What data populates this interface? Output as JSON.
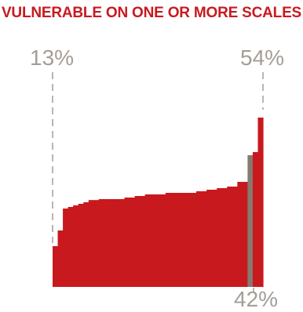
{
  "chart_data": {
    "type": "bar",
    "title": "VULNERABLE ON ONE OR MORE SCALES",
    "annotations": {
      "min": "13%",
      "max": "54%",
      "highlight": "42%"
    },
    "ylim": [
      0,
      54
    ],
    "colors": {
      "bar": "#c8191f",
      "highlight": "#857a6e",
      "title": "#c8191f",
      "annotation": "#a69d95",
      "guide": "#a69d95"
    },
    "highlight_index": 38,
    "values": [
      13,
      18,
      25,
      25.5,
      26,
      26.5,
      27,
      27.7,
      27.7,
      28,
      28,
      28,
      28,
      28,
      28.5,
      28.5,
      29,
      29,
      29.5,
      29.5,
      29.5,
      29.5,
      30,
      30,
      30,
      30,
      30,
      30,
      30.5,
      30.5,
      31,
      31,
      31.5,
      31.5,
      32,
      32,
      33.5,
      33.5,
      42,
      43,
      54
    ]
  }
}
